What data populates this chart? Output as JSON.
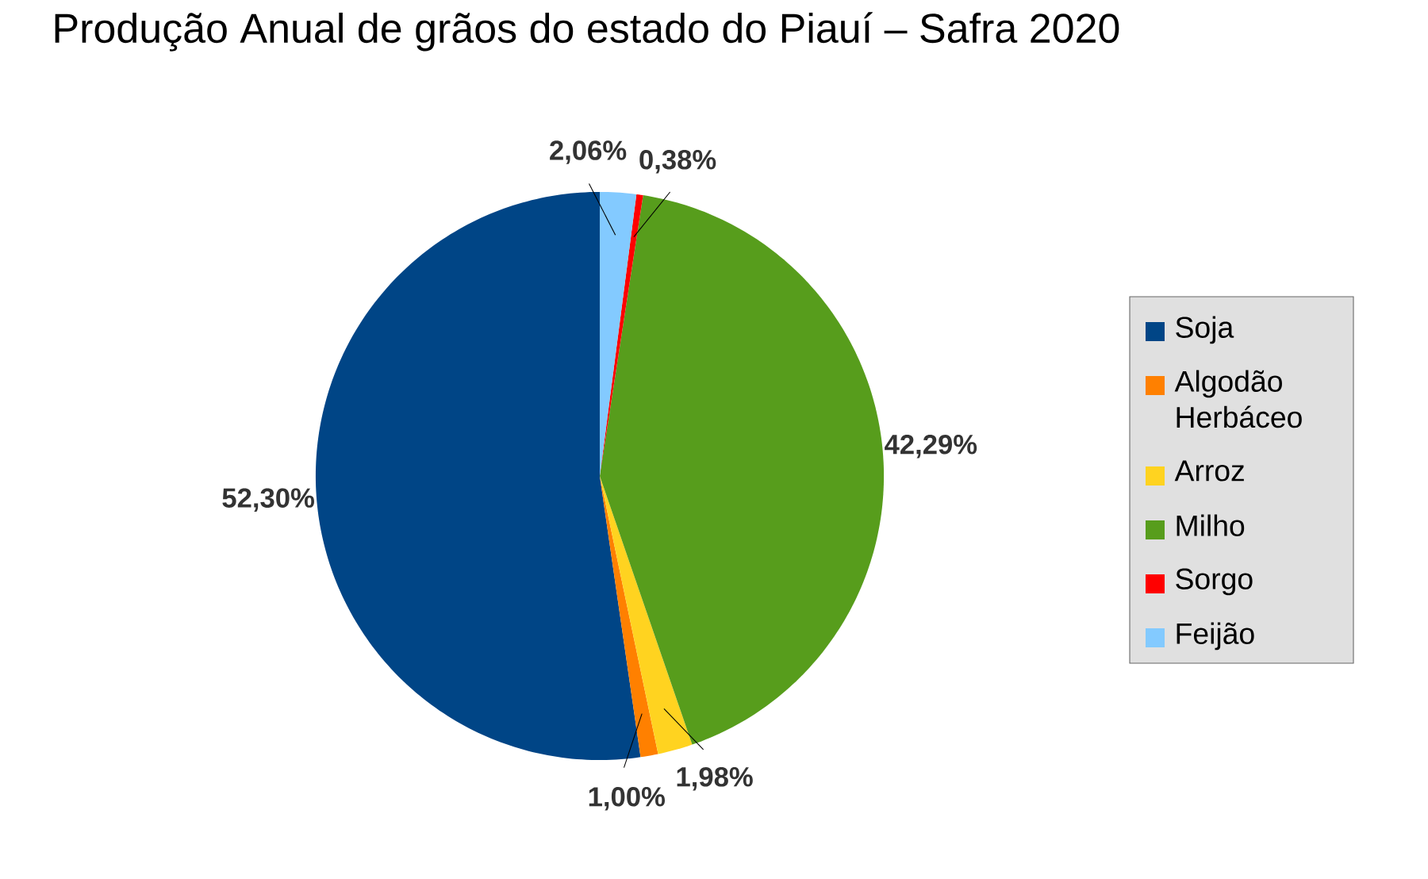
{
  "chart_data": {
    "type": "pie",
    "title": "Produção Anual de grãos do estado do Piauí – Safra 2020",
    "categories": [
      "Soja",
      "Algodão Herbáceo",
      "Arroz",
      "Milho",
      "Sorgo",
      "Feijão"
    ],
    "values": [
      52.3,
      1.0,
      1.98,
      42.29,
      0.38,
      2.06
    ],
    "value_labels": [
      "52,30%",
      "1,00%",
      "1,98%",
      "42,29%",
      "0,38%",
      "2,06%"
    ],
    "colors": [
      "#004586",
      "#ff8000",
      "#ffd320",
      "#579d1c",
      "#ff0000",
      "#83caff"
    ],
    "legend": "right"
  }
}
